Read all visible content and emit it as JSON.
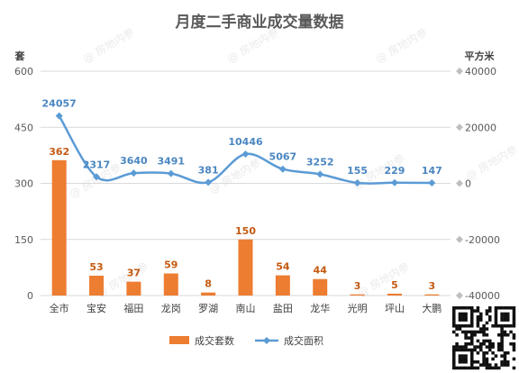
{
  "colors": {
    "bar": "#ed7d31",
    "line": "#5b9bd5",
    "grid": "#d9d9d9",
    "text": "#595959"
  },
  "watermark": "房地内参",
  "chart_data": {
    "type": "bar",
    "title": "月度二手商业成交量数据",
    "left_unit": "套",
    "right_unit": "平方米",
    "categories": [
      "全市",
      "宝安",
      "福田",
      "龙岗",
      "罗湖",
      "南山",
      "盐田",
      "龙华",
      "光明",
      "坪山",
      "大鹏"
    ],
    "ylim": [
      0,
      600
    ],
    "yticks": [
      0,
      150,
      300,
      450,
      600
    ],
    "y2lim": [
      -40000,
      40000
    ],
    "y2ticks": [
      -40000,
      -20000,
      0,
      20000,
      40000
    ],
    "legend_position": "bottom",
    "grid": true,
    "series": [
      {
        "name": "成交套数",
        "type": "bar",
        "axis": "left",
        "values": [
          362,
          53,
          37,
          59,
          8,
          150,
          54,
          44,
          3,
          5,
          3
        ]
      },
      {
        "name": "成交面积",
        "type": "line",
        "axis": "right",
        "values": [
          24057,
          2317,
          3640,
          3491,
          381,
          10446,
          5067,
          3252,
          155,
          229,
          147
        ]
      }
    ]
  }
}
